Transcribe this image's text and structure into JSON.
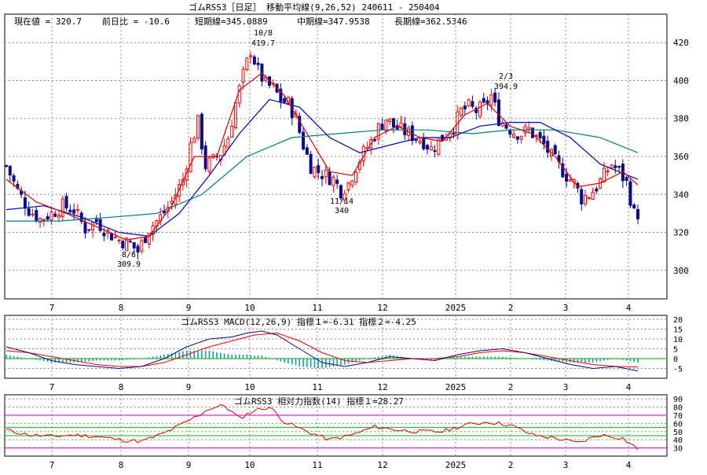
{
  "title_bar": {
    "text": "ゴムRSS3［日足］ 移動平均線(9,26,52) 240611 - 250404"
  },
  "info_line": {
    "current": "現在値 = 320.7",
    "change": "前日比 = -10.6",
    "short_ma": "短期線=345.0889",
    "mid_ma": "中期線=347.9538",
    "long_ma": "長期線=362.5346"
  },
  "month_labels": [
    "7",
    "8",
    "9",
    "10",
    "11",
    "12",
    "2025",
    "2",
    "3",
    "4"
  ],
  "colors": {
    "up": "#ff0000",
    "down": "#0a0a8a",
    "ma_short": "#e00000",
    "ma_mid": "#0000c0",
    "ma_long": "#008080",
    "grid": "#888888",
    "macd_signal": "#00aa00",
    "rsi_line": "#e00000",
    "rsi_band_outer": "#cc00cc",
    "rsi_band_inner": "#00bb00",
    "macd_hist": "#00a0a0"
  },
  "annotations": [
    {
      "date": "10/8",
      "value": "419.7",
      "kind": "high"
    },
    {
      "date": "8/6",
      "value": "309.9",
      "kind": "low"
    },
    {
      "date": "11/14",
      "value": "340",
      "kind": "low"
    },
    {
      "date": "2/3",
      "value": "394.9",
      "kind": "high"
    }
  ],
  "macd_title": "ゴムRSS3 MACD(12,26,9) 指標１=-6.31 指標２=-4.25",
  "rsi_title": "ゴムRSS3 相対力指数(14) 指標１=28.27",
  "chart_data": [
    {
      "type": "candlestick",
      "ylim": [
        285,
        435
      ],
      "yticks": [
        300,
        320,
        340,
        360,
        380,
        400,
        420
      ],
      "grid": true,
      "x_range": [
        "240611",
        "250404"
      ],
      "series": [
        {
          "name": "短期線",
          "period": 9,
          "last": 345.0889
        },
        {
          "name": "中期線",
          "period": 26,
          "last": 347.9538
        },
        {
          "name": "長期線",
          "period": 52,
          "last": 362.5346
        }
      ],
      "close_path": [
        [
          0,
          355
        ],
        [
          3,
          342
        ],
        [
          6,
          332
        ],
        [
          9,
          327
        ],
        [
          12,
          330
        ],
        [
          15,
          334
        ],
        [
          18,
          332
        ],
        [
          21,
          322
        ],
        [
          24,
          326
        ],
        [
          27,
          320
        ],
        [
          30,
          316
        ],
        [
          33,
          314
        ],
        [
          35,
          310
        ],
        [
          38,
          322
        ],
        [
          41,
          328
        ],
        [
          44,
          336
        ],
        [
          47,
          348
        ],
        [
          49,
          366
        ],
        [
          51,
          378
        ],
        [
          53,
          355
        ],
        [
          55,
          358
        ],
        [
          57,
          362
        ],
        [
          59,
          370
        ],
        [
          61,
          388
        ],
        [
          63,
          403
        ],
        [
          65,
          416
        ],
        [
          67,
          405
        ],
        [
          69,
          398
        ],
        [
          71,
          396
        ],
        [
          73,
          390
        ],
        [
          75,
          388
        ],
        [
          77,
          380
        ],
        [
          79,
          366
        ],
        [
          81,
          355
        ],
        [
          83,
          352
        ],
        [
          85,
          350
        ],
        [
          87,
          348
        ],
        [
          89,
          342
        ],
        [
          91,
          346
        ],
        [
          93,
          355
        ],
        [
          95,
          362
        ],
        [
          97,
          368
        ],
        [
          99,
          375
        ],
        [
          101,
          380
        ],
        [
          103,
          376
        ],
        [
          105,
          374
        ],
        [
          107,
          372
        ],
        [
          109,
          370
        ],
        [
          111,
          368
        ],
        [
          113,
          364
        ],
        [
          115,
          368
        ],
        [
          117,
          372
        ],
        [
          119,
          376
        ],
        [
          121,
          384
        ],
        [
          123,
          386
        ],
        [
          125,
          384
        ],
        [
          127,
          386
        ],
        [
          129,
          392
        ],
        [
          131,
          380
        ],
        [
          133,
          376
        ],
        [
          135,
          373
        ],
        [
          137,
          372
        ],
        [
          139,
          374
        ],
        [
          141,
          370
        ],
        [
          143,
          366
        ],
        [
          145,
          360
        ],
        [
          147,
          355
        ],
        [
          149,
          350
        ],
        [
          151,
          346
        ],
        [
          153,
          338
        ],
        [
          155,
          340
        ],
        [
          157,
          344
        ],
        [
          159,
          350
        ],
        [
          161,
          356
        ],
        [
          163,
          352
        ],
        [
          165,
          346
        ],
        [
          167,
          330
        ]
      ],
      "ma_short_path": [
        [
          0,
          348
        ],
        [
          8,
          336
        ],
        [
          16,
          330
        ],
        [
          24,
          323
        ],
        [
          32,
          316
        ],
        [
          38,
          318
        ],
        [
          44,
          334
        ],
        [
          50,
          360
        ],
        [
          56,
          360
        ],
        [
          62,
          395
        ],
        [
          68,
          404
        ],
        [
          74,
          392
        ],
        [
          80,
          372
        ],
        [
          86,
          352
        ],
        [
          92,
          350
        ],
        [
          98,
          370
        ],
        [
          104,
          376
        ],
        [
          110,
          370
        ],
        [
          116,
          368
        ],
        [
          122,
          382
        ],
        [
          128,
          388
        ],
        [
          134,
          376
        ],
        [
          140,
          372
        ],
        [
          146,
          360
        ],
        [
          152,
          344
        ],
        [
          158,
          346
        ],
        [
          164,
          352
        ],
        [
          168,
          345
        ]
      ],
      "ma_mid_path": [
        [
          0,
          332
        ],
        [
          10,
          334
        ],
        [
          20,
          328
        ],
        [
          30,
          320
        ],
        [
          38,
          318
        ],
        [
          46,
          330
        ],
        [
          54,
          350
        ],
        [
          62,
          372
        ],
        [
          70,
          390
        ],
        [
          78,
          386
        ],
        [
          86,
          370
        ],
        [
          94,
          362
        ],
        [
          102,
          366
        ],
        [
          110,
          370
        ],
        [
          118,
          370
        ],
        [
          126,
          376
        ],
        [
          134,
          378
        ],
        [
          142,
          378
        ],
        [
          150,
          370
        ],
        [
          158,
          356
        ],
        [
          168,
          348
        ]
      ],
      "ma_long_path": [
        [
          0,
          326
        ],
        [
          14,
          326
        ],
        [
          28,
          328
        ],
        [
          40,
          330
        ],
        [
          52,
          340
        ],
        [
          64,
          360
        ],
        [
          76,
          370
        ],
        [
          88,
          372
        ],
        [
          100,
          374
        ],
        [
          112,
          374
        ],
        [
          124,
          372
        ],
        [
          134,
          374
        ],
        [
          146,
          374
        ],
        [
          158,
          370
        ],
        [
          168,
          362
        ]
      ]
    },
    {
      "type": "line",
      "title": "MACD(12,26,9)",
      "ylim": [
        -10,
        22
      ],
      "yticks": [
        -5,
        0,
        5,
        10,
        15,
        20
      ],
      "series": [
        {
          "name": "指標１",
          "last": -6.31,
          "values": [
            [
              0,
              6
            ],
            [
              6,
              3
            ],
            [
              12,
              -1
            ],
            [
              18,
              -3
            ],
            [
              24,
              -4
            ],
            [
              30,
              -5
            ],
            [
              36,
              -4
            ],
            [
              42,
              0
            ],
            [
              48,
              6
            ],
            [
              54,
              10
            ],
            [
              60,
              11
            ],
            [
              64,
              13
            ],
            [
              68,
              14
            ],
            [
              72,
              12
            ],
            [
              78,
              5
            ],
            [
              84,
              -2
            ],
            [
              90,
              -4
            ],
            [
              96,
              -2
            ],
            [
              102,
              1
            ],
            [
              108,
              0
            ],
            [
              114,
              -1
            ],
            [
              120,
              2
            ],
            [
              126,
              4
            ],
            [
              132,
              5
            ],
            [
              138,
              3
            ],
            [
              144,
              0
            ],
            [
              150,
              -3
            ],
            [
              156,
              -5
            ],
            [
              162,
              -4
            ],
            [
              168,
              -6.31
            ]
          ]
        },
        {
          "name": "指標２",
          "last": -4.25,
          "values": [
            [
              0,
              4
            ],
            [
              6,
              3
            ],
            [
              12,
              1
            ],
            [
              18,
              -1
            ],
            [
              24,
              -3
            ],
            [
              30,
              -4
            ],
            [
              36,
              -4
            ],
            [
              42,
              -2
            ],
            [
              48,
              2
            ],
            [
              54,
              6
            ],
            [
              60,
              9
            ],
            [
              66,
              12
            ],
            [
              72,
              13
            ],
            [
              78,
              9
            ],
            [
              84,
              3
            ],
            [
              90,
              -1
            ],
            [
              96,
              -2
            ],
            [
              102,
              -1
            ],
            [
              108,
              0
            ],
            [
              114,
              0
            ],
            [
              120,
              1
            ],
            [
              126,
              3
            ],
            [
              132,
              4
            ],
            [
              138,
              3
            ],
            [
              144,
              1
            ],
            [
              150,
              -1
            ],
            [
              156,
              -3
            ],
            [
              162,
              -4
            ],
            [
              168,
              -4.25
            ]
          ]
        }
      ]
    },
    {
      "type": "line",
      "title": "相対力指数(14)",
      "ylim": [
        20,
        95
      ],
      "yticks": [
        30,
        40,
        50,
        60,
        70,
        80,
        90
      ],
      "bands": [
        30,
        45,
        55,
        70
      ],
      "series": [
        {
          "name": "指標１",
          "last": 28.27,
          "values": [
            [
              0,
              52
            ],
            [
              6,
              46
            ],
            [
              12,
              44
            ],
            [
              18,
              46
            ],
            [
              24,
              44
            ],
            [
              30,
              40
            ],
            [
              36,
              38
            ],
            [
              42,
              48
            ],
            [
              48,
              62
            ],
            [
              54,
              78
            ],
            [
              58,
              82
            ],
            [
              62,
              66
            ],
            [
              66,
              76
            ],
            [
              70,
              80
            ],
            [
              74,
              62
            ],
            [
              80,
              50
            ],
            [
              86,
              40
            ],
            [
              92,
              46
            ],
            [
              98,
              56
            ],
            [
              104,
              52
            ],
            [
              110,
              50
            ],
            [
              116,
              50
            ],
            [
              122,
              58
            ],
            [
              128,
              62
            ],
            [
              134,
              58
            ],
            [
              140,
              46
            ],
            [
              146,
              42
            ],
            [
              152,
              36
            ],
            [
              158,
              46
            ],
            [
              164,
              42
            ],
            [
              168,
              28.27
            ]
          ]
        }
      ]
    }
  ]
}
